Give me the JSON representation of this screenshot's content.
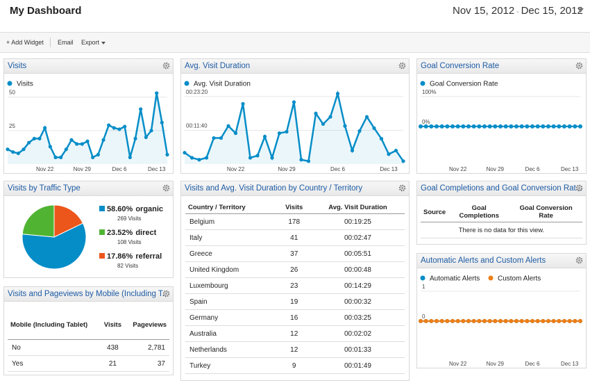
{
  "header": {
    "title": "My Dashboard",
    "date_start": "Nov 15, 2012",
    "date_separator": "-",
    "date_end": "Dec 15, 2012"
  },
  "toolbar": {
    "add_widget": "+ Add Widget",
    "email": "Email",
    "export": "Export"
  },
  "chart_data": [
    {
      "type": "area",
      "title": "Visits",
      "categories": [
        null,
        null,
        null,
        null,
        null,
        null,
        null,
        "Nov 22",
        null,
        null,
        null,
        null,
        null,
        null,
        "Nov 29",
        null,
        null,
        null,
        null,
        null,
        null,
        "Dec 6",
        null,
        null,
        null,
        null,
        null,
        null,
        "Dec 13",
        null,
        null
      ],
      "series": [
        {
          "name": "Visits",
          "color": "#058dc7",
          "values": [
            11,
            9,
            8,
            11,
            16,
            19,
            19,
            27,
            13,
            5,
            5,
            11,
            18,
            15,
            15,
            17,
            5,
            7,
            18,
            29,
            27,
            26,
            28,
            5,
            19,
            41,
            20,
            25,
            53,
            31,
            7
          ]
        }
      ],
      "ylim": [
        0,
        54
      ],
      "yticks": [
        25,
        50
      ],
      "grid": true
    },
    {
      "type": "area",
      "title": "Avg. Visit Duration",
      "categories": [
        null,
        null,
        null,
        null,
        null,
        null,
        null,
        "Nov 22",
        null,
        null,
        null,
        null,
        null,
        null,
        "Nov 29",
        null,
        null,
        null,
        null,
        null,
        null,
        "Dec 6",
        null,
        null,
        null,
        null,
        null,
        null,
        "Dec 13",
        null,
        null
      ],
      "series": [
        {
          "name": "Avg. Visit Duration",
          "color": "#058dc7",
          "values": [
            235,
            130,
            90,
            130,
            540,
            540,
            790,
            640,
            1250,
            130,
            175,
            570,
            130,
            640,
            670,
            1285,
            90,
            60,
            1050,
            830,
            980,
            1460,
            790,
            280,
            685,
            980,
            745,
            525,
            205,
            280,
            60
          ]
        }
      ],
      "ylim": [
        0,
        1500
      ],
      "yticks": [
        {
          "value": 700,
          "label": "00:11:40"
        },
        {
          "value": 1400,
          "label": "00:23:20"
        }
      ],
      "grid": true
    },
    {
      "type": "line",
      "title": "Goal Conversion Rate",
      "categories": [
        null,
        null,
        null,
        null,
        null,
        null,
        null,
        "Nov 22",
        null,
        null,
        null,
        null,
        null,
        null,
        "Nov 29",
        null,
        null,
        null,
        null,
        null,
        null,
        "Dec 6",
        null,
        null,
        null,
        null,
        null,
        null,
        "Dec 13",
        null,
        null
      ],
      "series": [
        {
          "name": "Goal Conversion Rate",
          "color": "#058dc7",
          "values": [
            0,
            0,
            0,
            0,
            0,
            0,
            0,
            0,
            0,
            0,
            0,
            0,
            0,
            0,
            0,
            0,
            0,
            0,
            0,
            0,
            0,
            0,
            0,
            0,
            0,
            0,
            0,
            0,
            0,
            0,
            0
          ]
        }
      ],
      "ylim": [
        -126,
        116
      ],
      "yticks": [
        {
          "value": 0,
          "label": "0%"
        },
        {
          "value": 100,
          "label": "100%"
        }
      ],
      "grid": true
    },
    {
      "type": "pie",
      "title": "Visits by Traffic Type",
      "categories": [
        "organic",
        "direct",
        "referral"
      ],
      "values": [
        58.6,
        23.52,
        17.86
      ],
      "value_labels": [
        "58.60%",
        "23.52%",
        "17.86%"
      ],
      "visit_labels": [
        "269 Visits",
        "108 Visits",
        "82 Visits"
      ],
      "colors": [
        "#058dc7",
        "#50b432",
        "#ed561b"
      ]
    },
    {
      "type": "line",
      "title": "Automatic Alerts and Custom Alerts",
      "categories": [
        null,
        null,
        null,
        null,
        null,
        null,
        null,
        "Nov 22",
        null,
        null,
        null,
        null,
        null,
        null,
        "Nov 29",
        null,
        null,
        null,
        null,
        null,
        null,
        "Dec 6",
        null,
        null,
        null,
        null,
        null,
        null,
        "Dec 13",
        null,
        null
      ],
      "series": [
        {
          "name": "Automatic Alerts",
          "color": "#058dc7",
          "values": [
            0,
            0,
            0,
            0,
            0,
            0,
            0,
            0,
            0,
            0,
            0,
            0,
            0,
            0,
            0,
            0,
            0,
            0,
            0,
            0,
            0,
            0,
            0,
            0,
            0,
            0,
            0,
            0,
            0,
            0,
            0
          ]
        },
        {
          "name": "Custom Alerts",
          "color": "#ed7e17",
          "values": [
            0,
            0,
            0,
            0,
            0,
            0,
            0,
            0,
            0,
            0,
            0,
            0,
            0,
            0,
            0,
            0,
            0,
            0,
            0,
            0,
            0,
            0,
            0,
            0,
            0,
            0,
            0,
            0,
            0,
            0,
            0
          ]
        }
      ],
      "ylim": [
        -1.26,
        1.16
      ],
      "yticks": [
        0,
        1
      ],
      "grid": true
    }
  ],
  "country_table": {
    "title": "Visits and Avg. Visit Duration by Country / Territory",
    "columns": [
      "Country / Territory",
      "Visits",
      "Avg. Visit Duration"
    ],
    "rows": [
      [
        "Belgium",
        "178",
        "00:19:25"
      ],
      [
        "Italy",
        "41",
        "00:02:47"
      ],
      [
        "Greece",
        "37",
        "00:05:51"
      ],
      [
        "United Kingdom",
        "26",
        "00:00:48"
      ],
      [
        "Luxembourg",
        "23",
        "00:14:29"
      ],
      [
        "Spain",
        "19",
        "00:00:32"
      ],
      [
        "Germany",
        "16",
        "00:03:25"
      ],
      [
        "Australia",
        "12",
        "00:02:02"
      ],
      [
        "Netherlands",
        "12",
        "00:01:33"
      ],
      [
        "Turkey",
        "9",
        "00:01:49"
      ]
    ]
  },
  "goal_table": {
    "title": "Goal Completions and Goal Conversion Rat...",
    "columns": [
      "Source",
      "Goal Completions",
      "Goal Conversion Rate"
    ],
    "empty_message": "There is no data for this view."
  },
  "mobile_table": {
    "title": "Visits and Pageviews by Mobile (Including T...",
    "columns": [
      "Mobile (Including Tablet)",
      "Visits",
      "Pageviews"
    ],
    "rows": [
      [
        "No",
        "438",
        "2,781"
      ],
      [
        "Yes",
        "21",
        "37"
      ]
    ]
  }
}
